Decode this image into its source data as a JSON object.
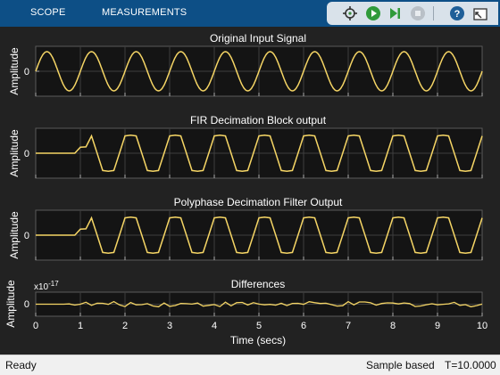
{
  "toolbar": {
    "tabs": [
      "SCOPE",
      "MEASUREMENTS"
    ],
    "icons": [
      "block-highlight-icon",
      "run-icon",
      "step-forward-icon",
      "stop-icon",
      "help-icon",
      "undock-icon"
    ]
  },
  "colors": {
    "accent_bar": "#0d4f86",
    "plot_bg": "#222222",
    "trace": "#f5d565",
    "text": "#ffffff"
  },
  "plots": [
    {
      "title": "Original Input Signal",
      "ylabel": "Amplitude",
      "ytick": "0"
    },
    {
      "title": "FIR Decimation Block output",
      "ylabel": "Amplitude",
      "ytick": "0"
    },
    {
      "title": "Polyphase Decimation Filter Output",
      "ylabel": "Amplitude",
      "ytick": "0"
    },
    {
      "title": "Differences",
      "ylabel": "Amplitude",
      "ytick": "0",
      "exponent": "x10",
      "exponent_power": "-17"
    }
  ],
  "xaxis": {
    "label": "Time (secs)",
    "ticks": [
      "0",
      "1",
      "2",
      "3",
      "4",
      "5",
      "6",
      "7",
      "8",
      "9",
      "10"
    ]
  },
  "status": {
    "left": "Ready",
    "mode": "Sample based",
    "time": "T=10.0000"
  },
  "chart_data": {
    "type": "line",
    "xlim": [
      0,
      10
    ],
    "grid": true,
    "series": [
      {
        "panel": 0,
        "kind": "sine",
        "frequency_hz": 1,
        "amplitude": 1,
        "signal_start": 0
      },
      {
        "panel": 1,
        "kind": "decimated-triangle",
        "frequency_hz": 1,
        "amplitude": 1,
        "signal_start": 1.0
      },
      {
        "panel": 2,
        "kind": "decimated-triangle",
        "frequency_hz": 1,
        "amplitude": 1,
        "signal_start": 1.0
      },
      {
        "panel": 3,
        "kind": "noise",
        "amplitude": 0.25
      }
    ]
  }
}
